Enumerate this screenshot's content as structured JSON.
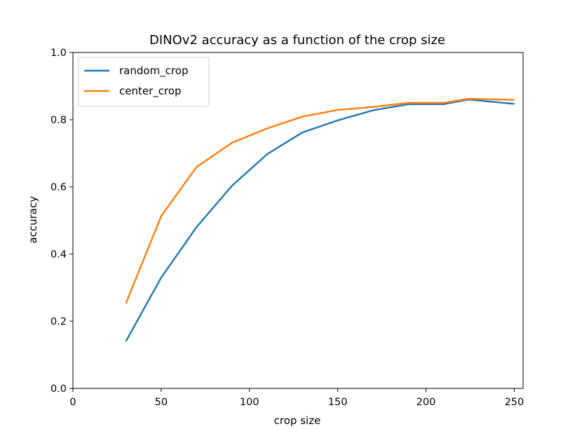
{
  "chart_data": {
    "type": "line",
    "title": "DINOv2 accuracy as a function of the crop size",
    "xlabel": "crop size",
    "ylabel": "accuracy",
    "xlim": [
      0,
      255
    ],
    "ylim": [
      0.0,
      1.0
    ],
    "xticks": [
      0,
      50,
      100,
      150,
      200,
      250
    ],
    "yticks": [
      0.0,
      0.2,
      0.4,
      0.6,
      0.8,
      1.0
    ],
    "xtick_labels": [
      "0",
      "50",
      "100",
      "150",
      "200",
      "250"
    ],
    "ytick_labels": [
      "0.0",
      "0.2",
      "0.4",
      "0.6",
      "0.8",
      "1.0"
    ],
    "grid": false,
    "legend_position": "top-left",
    "x": [
      30,
      50,
      70,
      90,
      110,
      130,
      150,
      170,
      190,
      210,
      224,
      250
    ],
    "series": [
      {
        "name": "random_crop",
        "color": "#1f77b4",
        "values": [
          0.14,
          0.33,
          0.48,
          0.603,
          0.697,
          0.762,
          0.798,
          0.828,
          0.846,
          0.846,
          0.86,
          0.847
        ]
      },
      {
        "name": "center_crop",
        "color": "#ff7f0e",
        "values": [
          0.253,
          0.513,
          0.659,
          0.731,
          0.774,
          0.809,
          0.829,
          0.838,
          0.85,
          0.85,
          0.862,
          0.859
        ]
      }
    ]
  }
}
